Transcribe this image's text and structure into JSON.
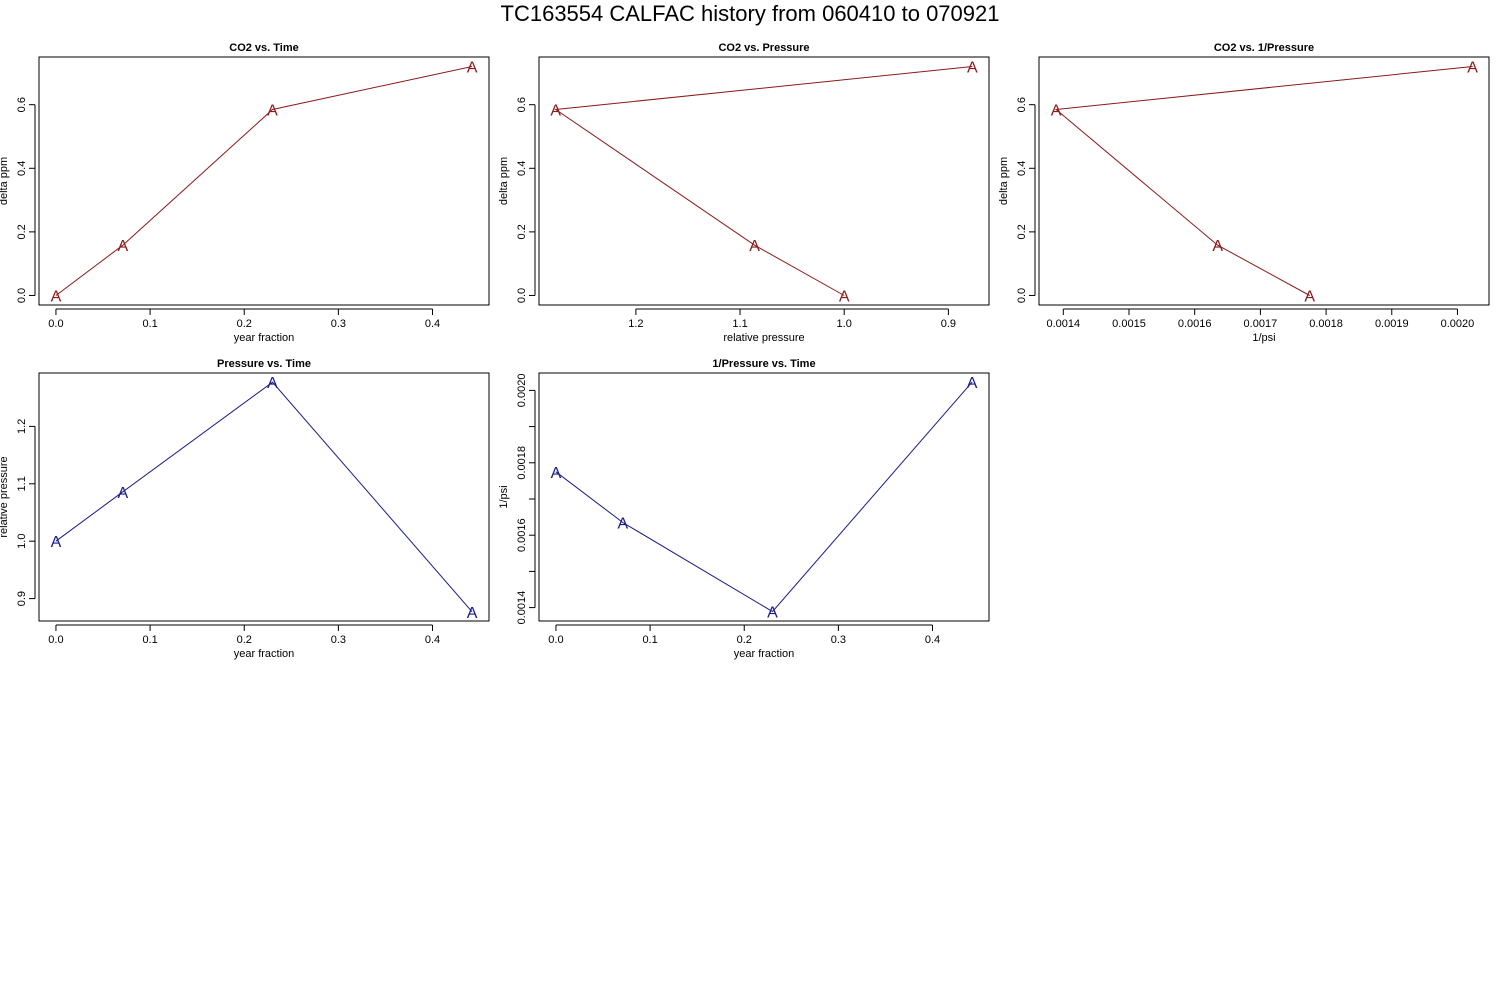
{
  "page_title": "TC163554   CALFAC history from  060410  to  070921",
  "colors": {
    "co2_series": "#8b1a1a",
    "pressure_series": "#1a1a8b",
    "axis": "#000000"
  },
  "chart_data": [
    {
      "type": "line",
      "title": "CO2 vs. Time",
      "xlabel": "year fraction",
      "ylabel": "delta ppm",
      "marker": "A",
      "x": [
        0.0,
        0.071,
        0.23,
        0.442
      ],
      "y": [
        0.0,
        0.158,
        0.585,
        0.72
      ],
      "xlim": [
        -0.018,
        0.46
      ],
      "ylim": [
        -0.03,
        0.75
      ],
      "xticks": [
        0.0,
        0.1,
        0.2,
        0.3,
        0.4
      ],
      "xtick_labels": [
        "0.0",
        "0.1",
        "0.2",
        "0.3",
        "0.4"
      ],
      "yticks": [
        0.0,
        0.2,
        0.4,
        0.6
      ],
      "ytick_labels": [
        "0.0",
        "0.2",
        "0.4",
        "0.6"
      ],
      "color": "#8b1a1a"
    },
    {
      "type": "line",
      "title": "CO2 vs. Pressure",
      "xlabel": "relative pressure",
      "ylabel": "delta ppm",
      "marker": "A",
      "x": [
        1.0,
        1.086,
        1.277,
        0.877
      ],
      "y": [
        0.0,
        0.158,
        0.585,
        0.72
      ],
      "xlim": [
        1.293,
        0.861
      ],
      "ylim": [
        -0.03,
        0.75
      ],
      "xticks": [
        1.2,
        1.1,
        1.0,
        0.9
      ],
      "xtick_labels": [
        "1.2",
        "1.1",
        "1.0",
        "0.9"
      ],
      "yticks": [
        0.0,
        0.2,
        0.4,
        0.6
      ],
      "ytick_labels": [
        "0.0",
        "0.2",
        "0.4",
        "0.6"
      ],
      "color": "#8b1a1a"
    },
    {
      "type": "line",
      "title": "CO2 vs. 1/Pressure",
      "xlabel": "1/psi",
      "ylabel": "delta ppm",
      "marker": "A",
      "x": [
        0.001775,
        0.001635,
        0.001389,
        0.002023
      ],
      "y": [
        0.0,
        0.158,
        0.585,
        0.72
      ],
      "xlim": [
        0.001363,
        0.002048
      ],
      "ylim": [
        -0.03,
        0.75
      ],
      "xticks": [
        0.0014,
        0.0015,
        0.0016,
        0.0017,
        0.0018,
        0.0019,
        0.002
      ],
      "xtick_labels": [
        "0.0014",
        "0.0015",
        "0.0016",
        "0.0017",
        "0.0018",
        "0.0019",
        "0.0020"
      ],
      "yticks": [
        0.0,
        0.2,
        0.4,
        0.6
      ],
      "ytick_labels": [
        "0.0",
        "0.2",
        "0.4",
        "0.6"
      ],
      "color": "#8b1a1a"
    },
    {
      "type": "line",
      "title": "Pressure vs. Time",
      "xlabel": "year fraction",
      "ylabel": "relative pressure",
      "marker": "A",
      "x": [
        0.0,
        0.071,
        0.23,
        0.442
      ],
      "y": [
        1.0,
        1.086,
        1.277,
        0.877
      ],
      "xlim": [
        -0.018,
        0.46
      ],
      "ylim": [
        0.861,
        1.293
      ],
      "xticks": [
        0.0,
        0.1,
        0.2,
        0.3,
        0.4
      ],
      "xtick_labels": [
        "0.0",
        "0.1",
        "0.2",
        "0.3",
        "0.4"
      ],
      "yticks": [
        0.9,
        1.0,
        1.1,
        1.2
      ],
      "ytick_labels": [
        "0.9",
        "1.0",
        "1.1",
        "1.2"
      ],
      "color": "#1a1a8b"
    },
    {
      "type": "line",
      "title": "1/Pressure vs. Time",
      "xlabel": "year fraction",
      "ylabel": "1/psi",
      "marker": "A",
      "x": [
        0.0,
        0.071,
        0.23,
        0.442
      ],
      "y": [
        0.001775,
        0.001635,
        0.001389,
        0.002023
      ],
      "xlim": [
        -0.018,
        0.46
      ],
      "ylim": [
        0.001363,
        0.002048
      ],
      "xticks": [
        0.0,
        0.1,
        0.2,
        0.3,
        0.4
      ],
      "xtick_labels": [
        "0.0",
        "0.1",
        "0.2",
        "0.3",
        "0.4"
      ],
      "yticks": [
        0.0014,
        0.0015,
        0.0016,
        0.0017,
        0.0018,
        0.0019,
        0.002
      ],
      "ytick_labels": [
        "0.0014",
        "",
        "0.0016",
        "",
        "0.0018",
        "",
        "0.0020"
      ],
      "color": "#1a1a8b"
    }
  ]
}
